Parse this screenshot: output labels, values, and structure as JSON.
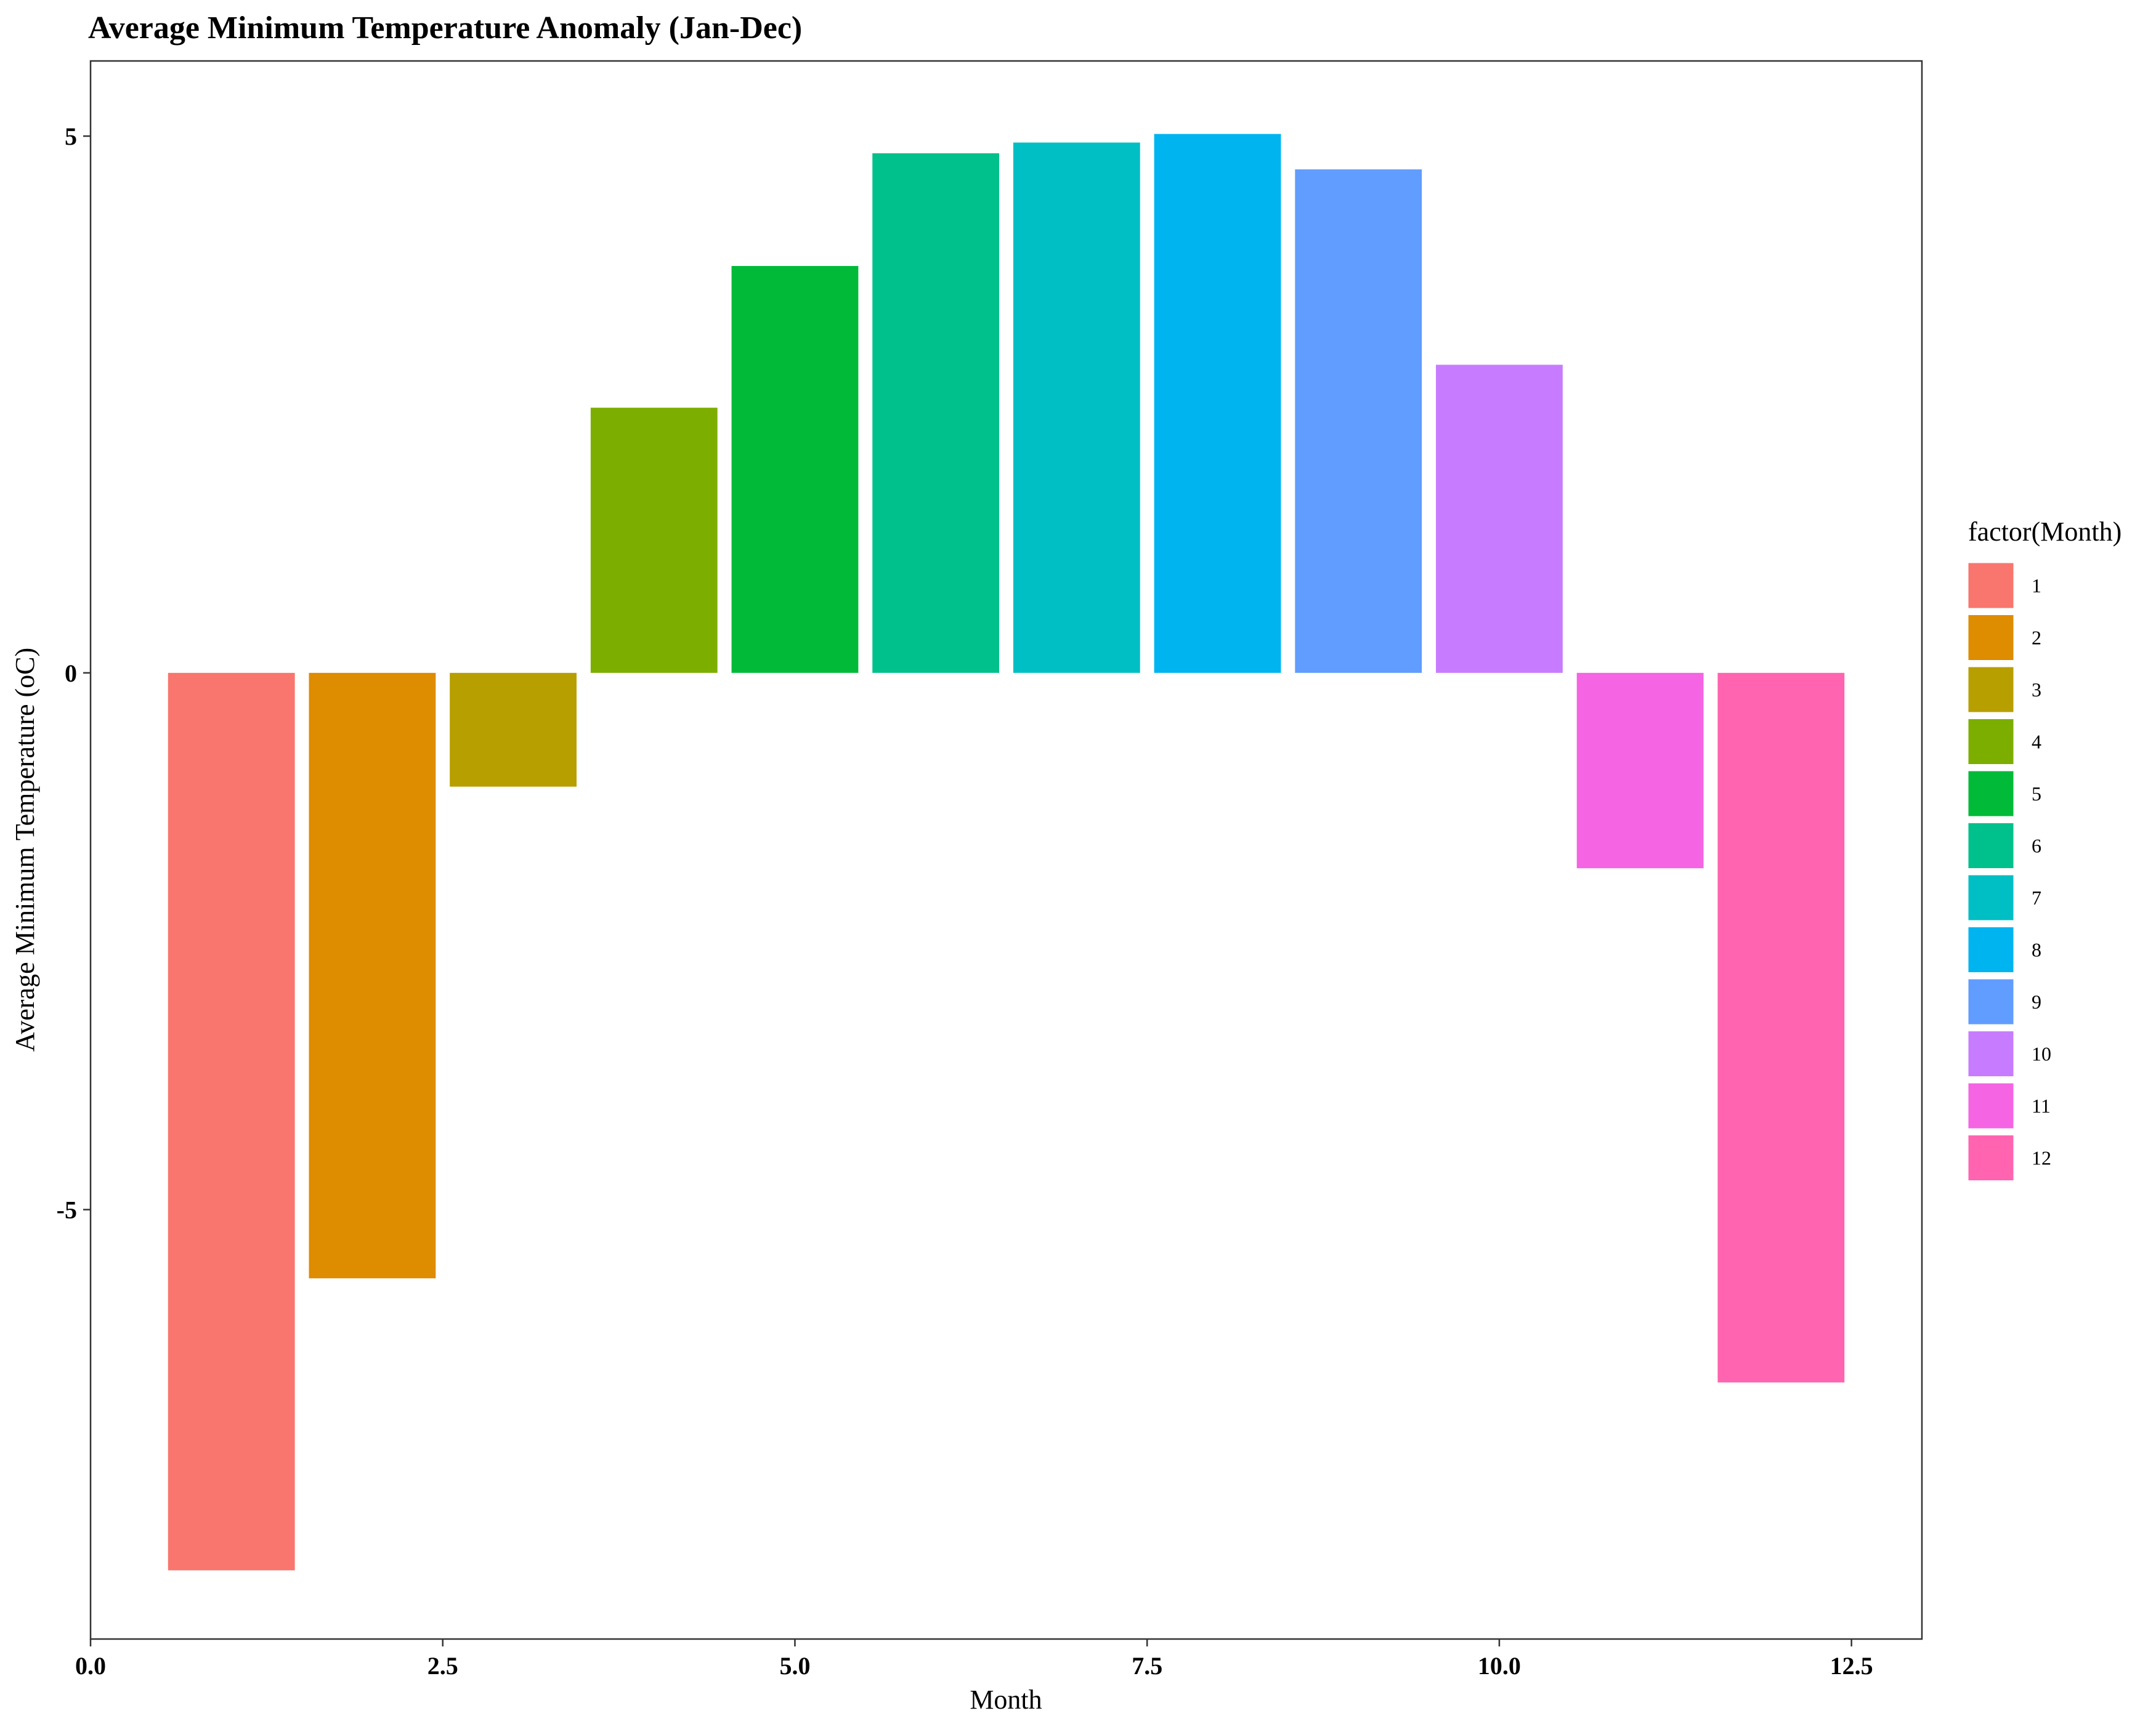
{
  "chart_data": {
    "type": "bar",
    "title": "Average Minimum Temperature Anomaly (Jan-Dec)",
    "xlabel": "Month",
    "ylabel": "Average Minimum Temperature (oC)",
    "xlim": [
      0,
      13
    ],
    "ylim": [
      -9,
      5.7
    ],
    "x_ticks": [
      0,
      2.5,
      5,
      7.5,
      10,
      12.5
    ],
    "x_tick_labels": [
      "0.0",
      "2.5",
      "5.0",
      "7.5",
      "10.0",
      "12.5"
    ],
    "y_ticks": [
      -5,
      0,
      5
    ],
    "y_tick_labels": [
      "-5",
      "0",
      "5"
    ],
    "grid": false,
    "legend": {
      "title": "factor(Month)",
      "position": "right"
    },
    "x": [
      1,
      2,
      3,
      4,
      5,
      6,
      7,
      8,
      9,
      10,
      11,
      12
    ],
    "values": [
      -8.36,
      -5.64,
      -1.06,
      2.47,
      3.79,
      4.84,
      4.94,
      5.02,
      4.69,
      2.87,
      -1.82,
      -6.61
    ],
    "series_labels": [
      "1",
      "2",
      "3",
      "4",
      "5",
      "6",
      "7",
      "8",
      "9",
      "10",
      "11",
      "12"
    ],
    "colors": [
      "#F8766D",
      "#DE8C00",
      "#B79F00",
      "#7CAE00",
      "#00BA38",
      "#00C08B",
      "#00BFC4",
      "#00B4F0",
      "#619CFF",
      "#C77CFF",
      "#F564E3",
      "#FF64B0"
    ]
  }
}
